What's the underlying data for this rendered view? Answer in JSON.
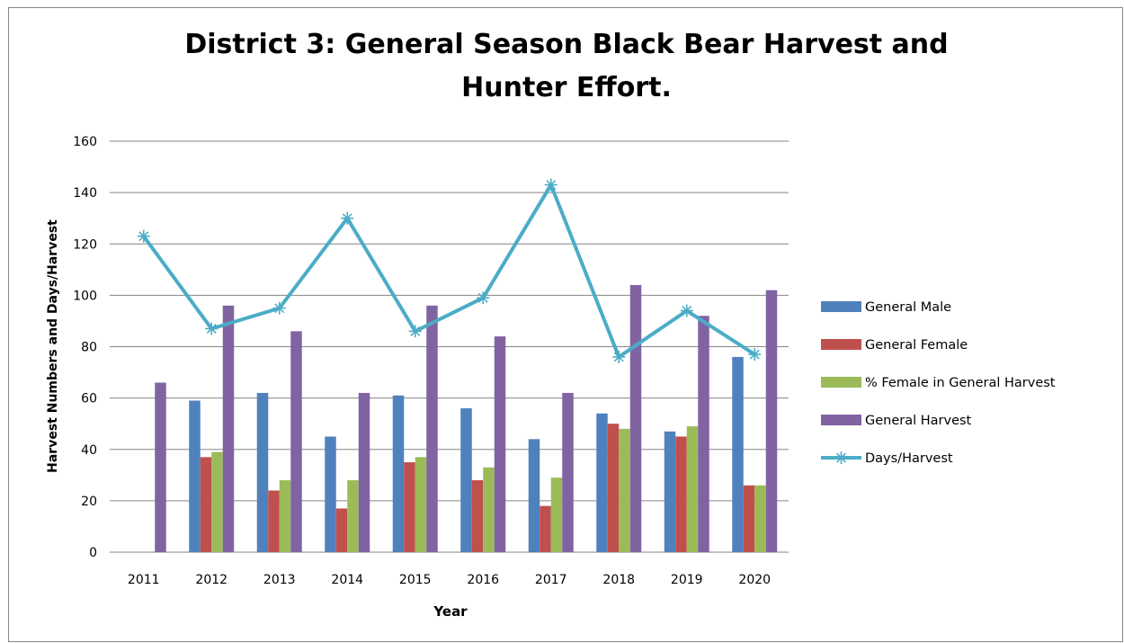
{
  "chart_data": {
    "type": "bar",
    "title_line1": "District 3:  General Season Black Bear Harvest and",
    "title_line2": "Hunter Effort.",
    "xlabel": "Year",
    "ylabel": "Harvest Numbers and Days/Harvest",
    "ylim": [
      0,
      160
    ],
    "ytick_step": 20,
    "yticks": [
      "0",
      "20",
      "40",
      "60",
      "80",
      "100",
      "120",
      "140",
      "160"
    ],
    "grid": true,
    "legend_position": "right",
    "categories": [
      "2011",
      "2012",
      "2013",
      "2014",
      "2015",
      "2016",
      "2017",
      "2018",
      "2019",
      "2020"
    ],
    "series": [
      {
        "name": "General Male",
        "type": "bar",
        "color": "#4F81BD",
        "values": [
          0,
          59,
          62,
          45,
          61,
          56,
          44,
          54,
          47,
          76
        ]
      },
      {
        "name": "General Female",
        "type": "bar",
        "color": "#C0504D",
        "values": [
          0,
          37,
          24,
          17,
          35,
          28,
          18,
          50,
          45,
          26
        ]
      },
      {
        "name": "% Female in General Harvest",
        "type": "bar",
        "color": "#9BBB59",
        "values": [
          0,
          39,
          28,
          28,
          37,
          33,
          29,
          48,
          49,
          26
        ]
      },
      {
        "name": "General Harvest",
        "type": "bar",
        "color": "#8064A2",
        "values": [
          66,
          96,
          86,
          62,
          96,
          84,
          62,
          104,
          92,
          102
        ]
      },
      {
        "name": "Days/Harvest",
        "type": "line",
        "color": "#4BACC6",
        "values": [
          123,
          87,
          95,
          130,
          86,
          99,
          143,
          76,
          94,
          77
        ]
      }
    ]
  }
}
